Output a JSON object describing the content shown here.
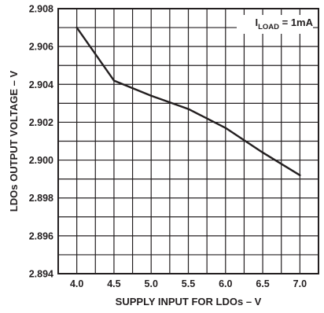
{
  "chart_data": {
    "type": "line",
    "title": "",
    "xlabel": "SUPPLY INPUT FOR LDOs – V",
    "ylabel": "LDOs OUTPUT VOLTAGE – V",
    "xlim": [
      3.75,
      7.25
    ],
    "ylim": [
      2.894,
      2.908
    ],
    "x_ticks": [
      4.0,
      4.5,
      5.0,
      5.5,
      6.0,
      6.5,
      7.0
    ],
    "x_tick_labels": [
      "4.0",
      "4.5",
      "5.0",
      "5.5",
      "6.0",
      "6.5",
      "7.0"
    ],
    "y_ticks": [
      2.894,
      2.896,
      2.898,
      2.9,
      2.902,
      2.904,
      2.906,
      2.908
    ],
    "y_tick_labels": [
      "2.894",
      "2.896",
      "2.898",
      "2.900",
      "2.902",
      "2.904",
      "2.906",
      "2.908"
    ],
    "x_gridlines": [
      3.75,
      4.0,
      4.25,
      4.5,
      4.75,
      5.0,
      5.25,
      5.5,
      5.75,
      6.0,
      6.25,
      6.5,
      6.75,
      7.0,
      7.25
    ],
    "y_gridlines": [
      2.894,
      2.895,
      2.896,
      2.897,
      2.898,
      2.899,
      2.9,
      2.901,
      2.902,
      2.903,
      2.904,
      2.905,
      2.906,
      2.907,
      2.908
    ],
    "grid": true,
    "annotation": {
      "prefix": "I",
      "subscript": "LOAD",
      "suffix": " = 1mA",
      "placement": "top-right"
    },
    "series": [
      {
        "color": "#231f20",
        "x": [
          4.0,
          4.5,
          5.0,
          5.5,
          6.0,
          6.5,
          7.0
        ],
        "y": [
          2.907,
          2.9042,
          2.9034,
          2.9027,
          2.9017,
          2.9004,
          2.8992
        ]
      }
    ]
  },
  "colors": {
    "line": "#231f20",
    "grid": "#231f20",
    "background": "#ffffff"
  }
}
